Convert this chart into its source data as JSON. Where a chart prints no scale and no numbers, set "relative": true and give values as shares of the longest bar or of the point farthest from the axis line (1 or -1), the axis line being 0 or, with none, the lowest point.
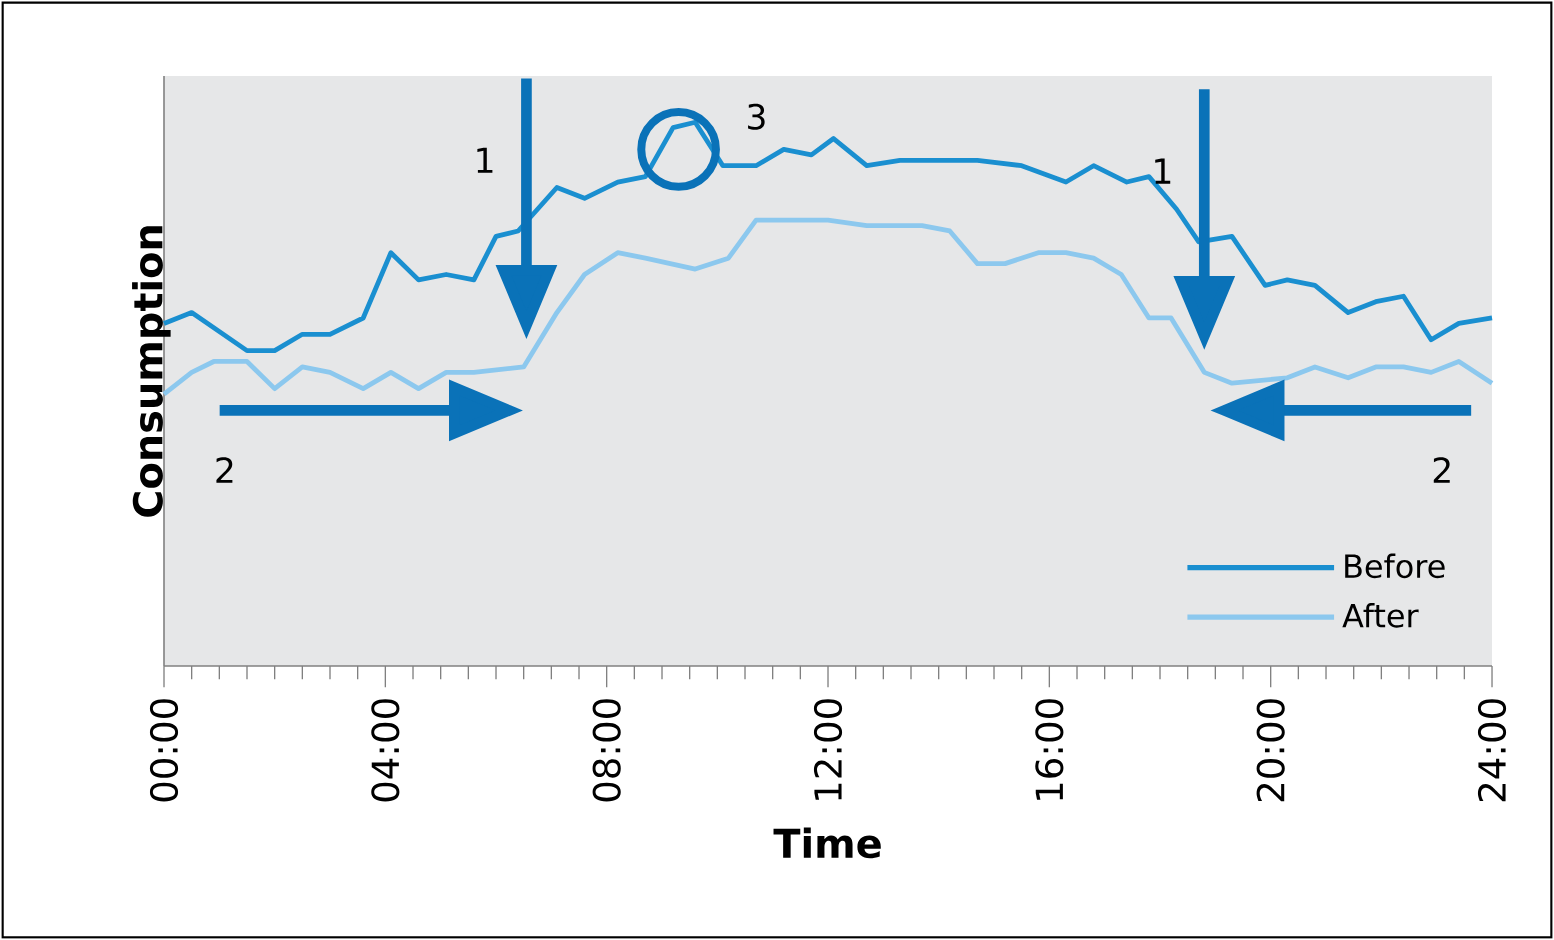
{
  "chart_data": {
    "type": "line",
    "relative": true,
    "xlabel": "Time",
    "ylabel": "Consumption",
    "xlim": [
      0,
      24
    ],
    "xticks": [
      {
        "value": 0,
        "label": "00:00"
      },
      {
        "value": 4,
        "label": "04:00"
      },
      {
        "value": 8,
        "label": "08:00"
      },
      {
        "value": 12,
        "label": "12:00"
      },
      {
        "value": 16,
        "label": "16:00"
      },
      {
        "value": 20,
        "label": "20:00"
      },
      {
        "value": 24,
        "label": "24:00"
      }
    ],
    "series": [
      {
        "name": "Before",
        "color": "#1a8fd0",
        "x": [
          0,
          0.5,
          1.5,
          2.0,
          2.5,
          3.0,
          3.6,
          4.1,
          4.6,
          5.1,
          5.6,
          6.0,
          6.4,
          7.1,
          7.6,
          8.2,
          8.7,
          9.2,
          9.6,
          10.1,
          10.7,
          11.2,
          11.7,
          12.1,
          12.7,
          13.3,
          13.8,
          14.7,
          15.5,
          16.3,
          16.8,
          17.4,
          17.8,
          18.3,
          18.7,
          19.3,
          19.9,
          20.3,
          20.8,
          21.4,
          21.9,
          22.4,
          22.9,
          23.4,
          24
        ],
        "values": [
          0.63,
          0.65,
          0.58,
          0.58,
          0.61,
          0.61,
          0.64,
          0.76,
          0.71,
          0.72,
          0.71,
          0.79,
          0.8,
          0.88,
          0.86,
          0.89,
          0.9,
          0.99,
          1.0,
          0.92,
          0.92,
          0.95,
          0.94,
          0.97,
          0.92,
          0.93,
          0.93,
          0.93,
          0.92,
          0.89,
          0.92,
          0.89,
          0.9,
          0.84,
          0.78,
          0.79,
          0.7,
          0.71,
          0.7,
          0.65,
          0.67,
          0.68,
          0.6,
          0.63,
          0.64
        ]
      },
      {
        "name": "After",
        "color": "#8cc8ee",
        "x": [
          0,
          0.5,
          0.9,
          1.5,
          2.0,
          2.5,
          3.0,
          3.6,
          4.1,
          4.6,
          5.1,
          5.6,
          6.5,
          7.1,
          7.6,
          8.2,
          8.7,
          9.6,
          10.2,
          10.7,
          12.0,
          12.7,
          13.7,
          14.2,
          14.7,
          15.2,
          15.8,
          16.3,
          16.8,
          17.3,
          17.8,
          18.2,
          18.8,
          19.3,
          20.3,
          20.8,
          21.4,
          21.9,
          22.4,
          22.9,
          23.4,
          24
        ],
        "values": [
          0.5,
          0.54,
          0.56,
          0.56,
          0.51,
          0.55,
          0.54,
          0.51,
          0.54,
          0.51,
          0.54,
          0.54,
          0.55,
          0.65,
          0.72,
          0.76,
          0.75,
          0.73,
          0.75,
          0.82,
          0.82,
          0.81,
          0.81,
          0.8,
          0.74,
          0.74,
          0.76,
          0.76,
          0.75,
          0.72,
          0.64,
          0.64,
          0.54,
          0.52,
          0.53,
          0.55,
          0.53,
          0.55,
          0.55,
          0.54,
          0.56,
          0.52
        ]
      }
    ],
    "annotations": [
      "1",
      "1",
      "2",
      "2",
      "3"
    ],
    "grid": false,
    "legend": "bottom right",
    "marker": "none",
    "line_style": "solid"
  }
}
